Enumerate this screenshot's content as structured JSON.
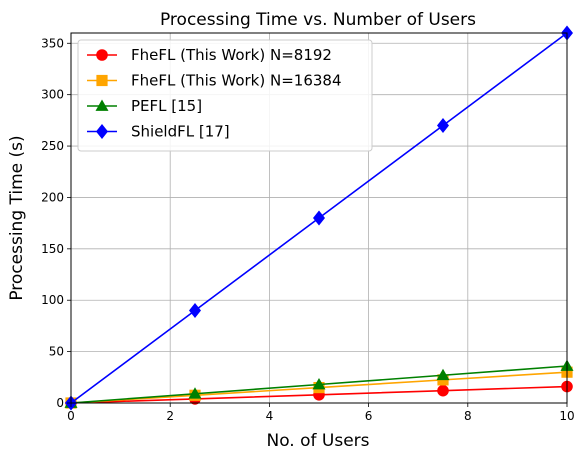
{
  "chart_data": {
    "type": "line",
    "title": "Processing Time vs. Number of Users",
    "xlabel": "No. of Users",
    "ylabel": "Processing Time (s)",
    "xlim": [
      0,
      10
    ],
    "ylim": [
      0,
      360
    ],
    "xticks": [
      0,
      2,
      4,
      6,
      8,
      10
    ],
    "yticks": [
      0,
      50,
      100,
      150,
      200,
      250,
      300,
      350
    ],
    "grid": true,
    "legend_position": "upper-left",
    "x": [
      0,
      2.5,
      5,
      7.5,
      10
    ],
    "series": [
      {
        "name": "FheFL (This Work) N=8192",
        "color": "#ff0000",
        "marker": "circle",
        "values": [
          0,
          4,
          8,
          12,
          16
        ]
      },
      {
        "name": "FheFL (This Work) N=16384",
        "color": "#ffa500",
        "marker": "square",
        "values": [
          0,
          7.5,
          15,
          22.5,
          30
        ]
      },
      {
        "name": "PEFL [15]",
        "color": "#008000",
        "marker": "triangle",
        "values": [
          0,
          9,
          18,
          27,
          36
        ]
      },
      {
        "name": "ShieldFL [17]",
        "color": "#0000ff",
        "marker": "diamond",
        "values": [
          0,
          90,
          180,
          270,
          360
        ]
      }
    ]
  }
}
